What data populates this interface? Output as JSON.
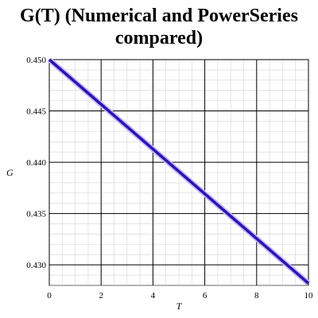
{
  "chart_data": {
    "type": "line",
    "title_line1": "G(T) (Numerical and PowerSeries",
    "title_line2": "compared)",
    "xlabel": "T",
    "ylabel": "G",
    "xlim": [
      0,
      10
    ],
    "ylim": [
      0.428,
      0.45
    ],
    "x_ticks": [
      0,
      2,
      4,
      6,
      8,
      10
    ],
    "x_tick_labels": [
      "0",
      "2",
      "4",
      "6",
      "8",
      "10"
    ],
    "y_ticks": [
      0.43,
      0.435,
      0.44,
      0.445,
      0.45
    ],
    "y_tick_labels": [
      "0.430",
      "0.435",
      "0.440",
      "0.445",
      "0.450"
    ],
    "grid": true,
    "series": [
      {
        "color": "#c8b8f0",
        "x": [
          0,
          10
        ],
        "y": [
          0.45,
          0.4282
        ]
      },
      {
        "color": "#2a10c8",
        "x": [
          0,
          10
        ],
        "y": [
          0.45,
          0.4282
        ]
      }
    ]
  }
}
